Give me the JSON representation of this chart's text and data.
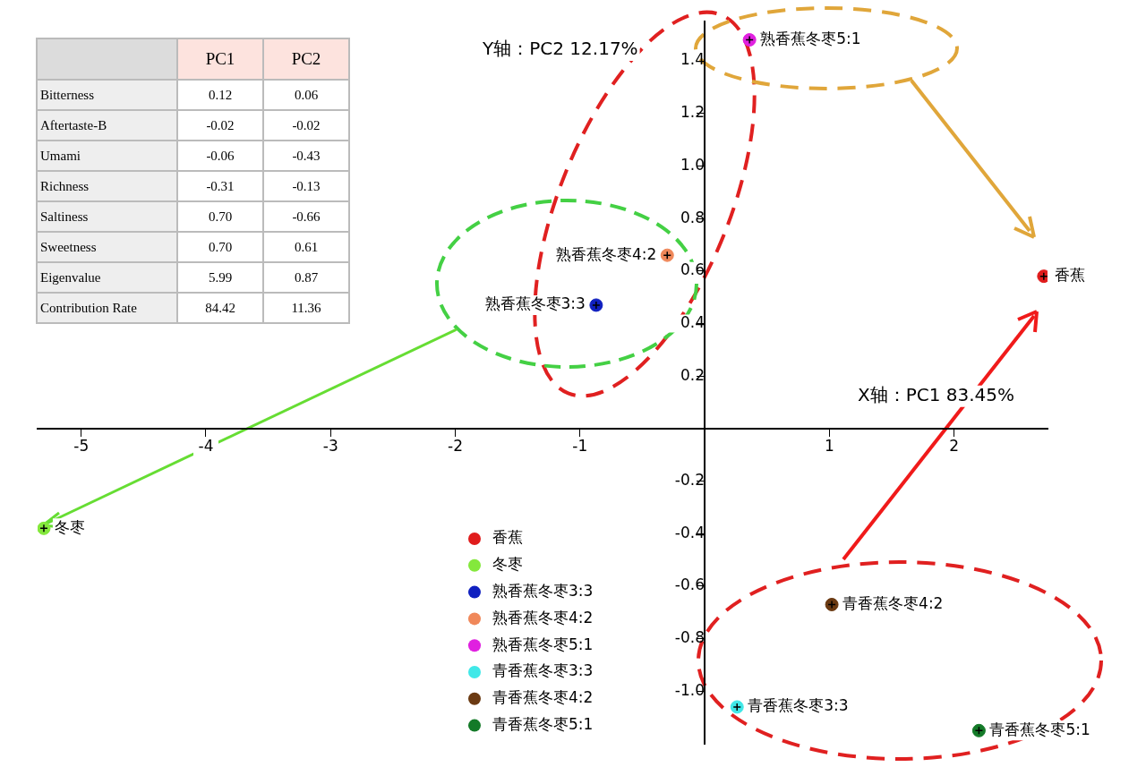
{
  "chart_data": [
    {
      "type": "scatter",
      "xlabel": "X轴：PC1 83.45%",
      "ylabel": "Y轴：PC2 12.17%",
      "marker": "circle",
      "legend": "bottom",
      "grid": false,
      "xlim": [
        -5.35,
        2.75
      ],
      "ylim": [
        -1.2,
        1.55
      ],
      "xticks": [
        -5,
        -4,
        -3,
        -2,
        -1,
        1,
        2
      ],
      "yticks": [
        {
          "value": -1,
          "label": "-1.0"
        },
        -0.8,
        -0.6,
        -0.4,
        -0.2,
        0.2,
        0.4,
        0.6,
        0.8,
        {
          "value": 1,
          "label": "1.0"
        },
        1.2,
        1.4
      ],
      "series": [
        {
          "name": "香蕉",
          "color": "#e01c1c",
          "x": [
            2.72
          ],
          "values": [
            0.58
          ]
        },
        {
          "name": "冬枣",
          "color": "#84e83c",
          "x": [
            -5.3
          ],
          "values": [
            -0.38
          ]
        },
        {
          "name": "熟香蕉冬枣3:3",
          "color": "#1020c0",
          "x": [
            -0.87
          ],
          "values": [
            0.47
          ]
        },
        {
          "name": "熟香蕉冬枣4:2",
          "color": "#f0885a",
          "x": [
            -0.3
          ],
          "values": [
            0.66
          ]
        },
        {
          "name": "熟香蕉冬枣5:1",
          "color": "#e020e0",
          "x": [
            0.36
          ],
          "values": [
            1.48
          ]
        },
        {
          "name": "青香蕉冬枣3:3",
          "color": "#40e8e8",
          "x": [
            0.26
          ],
          "values": [
            -1.06
          ]
        },
        {
          "name": "青香蕉冬枣4:2",
          "color": "#6b3a12",
          "x": [
            1.02
          ],
          "values": [
            -0.67
          ]
        },
        {
          "name": "青香蕉冬枣5:1",
          "color": "#147a28",
          "x": [
            2.2
          ],
          "values": [
            -1.15
          ]
        }
      ]
    },
    {
      "type": "heatmap",
      "data_labels": true,
      "categories": [
        "PC1",
        "PC2"
      ],
      "y_categories": [
        "Bitterness",
        "Aftertaste-B",
        "Umami",
        "Richness",
        "Saltiness",
        "Sweetness",
        "Eigenvalue",
        "Contribution Rate"
      ],
      "cells": [
        [
          0.12,
          0.06
        ],
        [
          -0.02,
          -0.02
        ],
        [
          -0.06,
          -0.43
        ],
        [
          -0.31,
          -0.13
        ],
        [
          0.7,
          -0.66
        ],
        [
          0.7,
          0.61
        ],
        [
          5.99,
          0.87
        ],
        [
          84.42,
          11.36
        ]
      ],
      "cell_labels": [
        [
          "0.12",
          "0.06"
        ],
        [
          "-0.02",
          "-0.02"
        ],
        [
          "-0.06",
          "-0.43"
        ],
        [
          "-0.31",
          "-0.13"
        ],
        [
          "0.70",
          "-0.66"
        ],
        [
          "0.70",
          "0.61"
        ],
        [
          "5.99",
          "0.87"
        ],
        [
          "84.42",
          "11.36"
        ]
      ]
    }
  ]
}
